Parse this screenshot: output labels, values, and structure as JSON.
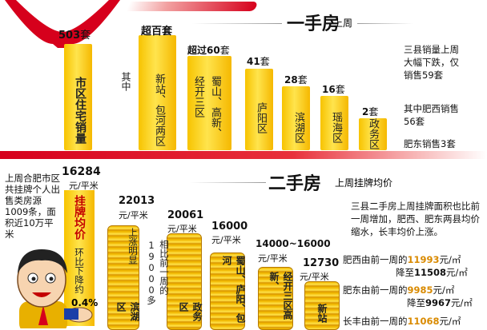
{
  "top": {
    "title": "一手房",
    "subtitle": "上周",
    "note1": "三县销量上周大幅下跌，仅销售59套",
    "note2": "其中肥西销售56套",
    "note3": "肥东销售3套",
    "qizhong": "其中",
    "bars": [
      {
        "value_label": "503",
        "unit": "套",
        "name": "市区住宅销量",
        "level": 503
      },
      {
        "value_label": "超百套",
        "unit": "",
        "name": "新站、包河两区",
        "level": 110
      },
      {
        "value_label": "超过60",
        "unit": "套",
        "name": "经开三区",
        "name2": "蜀山、高新、",
        "level": 65
      },
      {
        "value_label": "41",
        "unit": "套",
        "name": "庐阳区",
        "level": 41
      },
      {
        "value_label": "28",
        "unit": "套",
        "name": "滨湖区",
        "level": 28
      },
      {
        "value_label": "16",
        "unit": "套",
        "name": "瑶海区",
        "level": 16
      },
      {
        "value_label": "2",
        "unit": "套",
        "name": "政务区",
        "level": 2
      }
    ]
  },
  "bottom": {
    "title": "二手房",
    "subtitle": "上周挂牌均价",
    "intro": "上周合肥市区共挂牌个人出售类房源1009条，面积近10万平米",
    "main_value": "16284",
    "main_unit": "元/平米",
    "main_label": "挂牌均价",
    "main_change": "环比下降约",
    "main_pct": "0.4%",
    "up_note": "上涨明显",
    "prev_note": "相比前一周的19000多",
    "columns": [
      {
        "value": "22013",
        "unit": "元/平米",
        "name": "滨湖区"
      },
      {
        "value": "20061",
        "unit": "元/平米",
        "name": "政务区"
      },
      {
        "value": "16000",
        "unit": "元/平米",
        "name": "蜀山、庐阳、包河"
      },
      {
        "value": "14000~16000",
        "unit": "元/平米",
        "name": "经开三区高新、"
      },
      {
        "value": "12730",
        "unit": "元/平米",
        "name": "新站"
      }
    ],
    "para": "三县二手房上周挂牌面积也比前一周增加，肥西、肥东两县均价缩水，长丰均价上涨。",
    "feixi_a": "肥西由前一周的",
    "feixi_v1": "11993",
    "feixi_u": "元/㎡",
    "feixi_b": "降至",
    "feixi_v2": "11508",
    "feidong_a": "肥东由前一周的",
    "feidong_v1": "9985",
    "feidong_b": "降至",
    "feidong_v2": "9967",
    "changfeng_a": "长丰由前一周的",
    "changfeng_v1": "11068"
  },
  "colors": {
    "gold": "#f5c000",
    "red": "#c40000",
    "brand_red": "#d6001c"
  }
}
